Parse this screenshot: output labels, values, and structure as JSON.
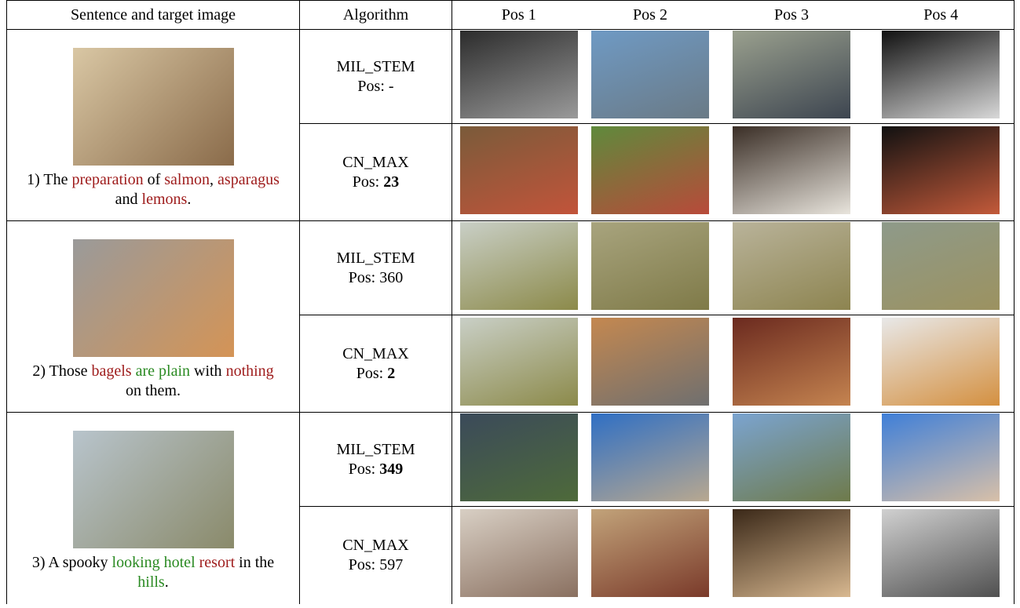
{
  "header": {
    "columns": [
      "Sentence and target image",
      "Algorithm",
      "Pos 1",
      "Pos 2",
      "Pos 3",
      "Pos 4"
    ]
  },
  "groups": [
    {
      "sentence": [
        {
          "text": "1) The ",
          "color": "#000000"
        },
        {
          "text": "preparation",
          "color": "#9e1b1b"
        },
        {
          "text": " of ",
          "color": "#000000"
        },
        {
          "text": "salmon",
          "color": "#9e1b1b"
        },
        {
          "text": ", ",
          "color": "#000000"
        },
        {
          "text": "asparagus",
          "color": "#9e1b1b"
        },
        {
          "text": " and ",
          "color": "#000000"
        },
        {
          "text": "lemons",
          "color": "#9e1b1b"
        },
        {
          "text": ".",
          "color": "#000000"
        }
      ],
      "rows": [
        {
          "algorithm": "MIL_STEM",
          "pos_label": "Pos:",
          "pos": "-",
          "pos_bold": false
        },
        {
          "algorithm": "CN_MAX",
          "pos_label": "Pos:",
          "pos": 23,
          "pos_bold": true
        }
      ]
    },
    {
      "sentence": [
        {
          "text": "2) Those ",
          "color": "#000000"
        },
        {
          "text": "bagels",
          "color": "#9e1b1b"
        },
        {
          "text": " ",
          "color": "#000000"
        },
        {
          "text": "are plain",
          "color": "#2a8a22"
        },
        {
          "text": " with ",
          "color": "#000000"
        },
        {
          "text": "nothing",
          "color": "#9e1b1b"
        },
        {
          "text": " on them.",
          "color": "#000000"
        }
      ],
      "rows": [
        {
          "algorithm": "MIL_STEM",
          "pos_label": "Pos:",
          "pos": 360,
          "pos_bold": false
        },
        {
          "algorithm": "CN_MAX",
          "pos_label": "Pos:",
          "pos": 2,
          "pos_bold": true
        }
      ]
    },
    {
      "sentence": [
        {
          "text": "3) A spooky ",
          "color": "#000000"
        },
        {
          "text": "looking hotel",
          "color": "#2a8a22"
        },
        {
          "text": " ",
          "color": "#000000"
        },
        {
          "text": "resort",
          "color": "#9e1b1b"
        },
        {
          "text": " in the ",
          "color": "#000000"
        },
        {
          "text": "hills",
          "color": "#2a8a22"
        },
        {
          "text": ".",
          "color": "#000000"
        }
      ],
      "rows": [
        {
          "algorithm": "MIL_STEM",
          "pos_label": "Pos:",
          "pos": 349,
          "pos_bold": true
        },
        {
          "algorithm": "CN_MAX",
          "pos_label": "Pos:",
          "pos": 597,
          "pos_bold": false
        }
      ]
    }
  ]
}
